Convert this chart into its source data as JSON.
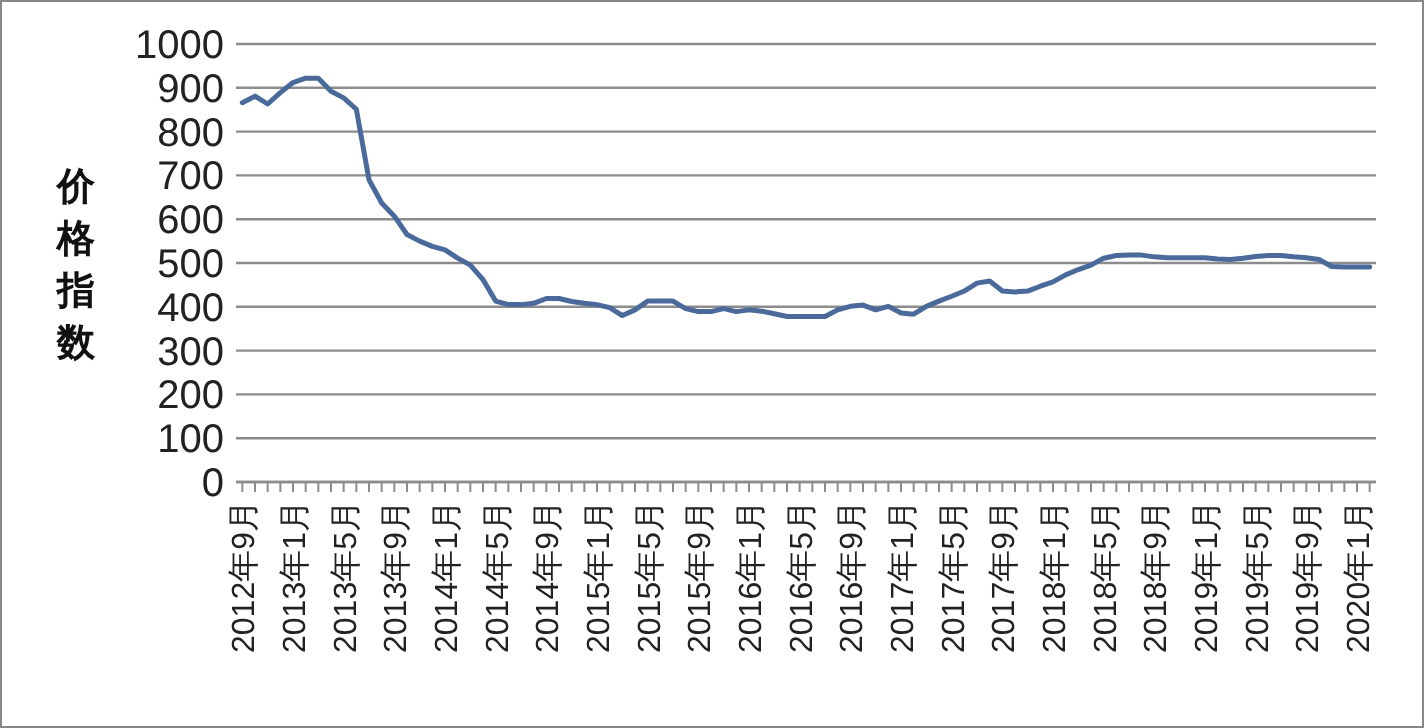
{
  "chart_data": {
    "type": "line",
    "ylabel": "价格指数",
    "categories": [
      "2012年9月",
      null,
      null,
      null,
      "2013年1月",
      null,
      null,
      null,
      "2013年5月",
      null,
      null,
      null,
      "2013年9月",
      null,
      null,
      null,
      "2014年1月",
      null,
      null,
      null,
      "2014年5月",
      null,
      null,
      null,
      "2014年9月",
      null,
      null,
      null,
      "2015年1月",
      null,
      null,
      null,
      "2015年5月",
      null,
      null,
      null,
      "2015年9月",
      null,
      null,
      null,
      "2016年1月",
      null,
      null,
      null,
      "2016年5月",
      null,
      null,
      null,
      "2016年9月",
      null,
      null,
      null,
      "2017年1月",
      null,
      null,
      null,
      "2017年5月",
      null,
      null,
      null,
      "2017年9月",
      null,
      null,
      null,
      "2018年1月",
      null,
      null,
      null,
      "2018年5月",
      null,
      null,
      null,
      "2018年9月",
      null,
      null,
      null,
      "2019年1月",
      null,
      null,
      null,
      "2019年5月",
      null,
      null,
      null,
      "2019年9月",
      null,
      null,
      null,
      "2020年1月",
      null
    ],
    "series": [
      {
        "color": "#4a6a9c",
        "values": [
          866,
          881,
          863,
          889,
          912,
          922,
          922,
          892,
          877,
          851,
          690,
          637,
          607,
          565,
          550,
          538,
          530,
          511,
          495,
          462,
          413,
          405,
          405,
          408,
          419,
          419,
          412,
          408,
          405,
          398,
          380,
          393,
          413,
          413,
          413,
          396,
          389,
          389,
          396,
          389,
          393,
          390,
          384,
          378,
          378,
          378,
          378,
          393,
          401,
          404,
          393,
          401,
          386,
          383,
          401,
          413,
          424,
          436,
          454,
          459,
          436,
          434,
          436,
          447,
          457,
          473,
          485,
          495,
          511,
          517,
          518,
          518,
          514,
          512,
          512,
          512,
          512,
          509,
          508,
          511,
          515,
          517,
          517,
          514,
          512,
          508,
          492,
          491,
          491,
          491
        ]
      }
    ],
    "ylim": [
      0,
      1000
    ],
    "yticks": [
      0,
      100,
      200,
      300,
      400,
      500,
      600,
      700,
      800,
      900,
      1000
    ],
    "grid": "y"
  }
}
